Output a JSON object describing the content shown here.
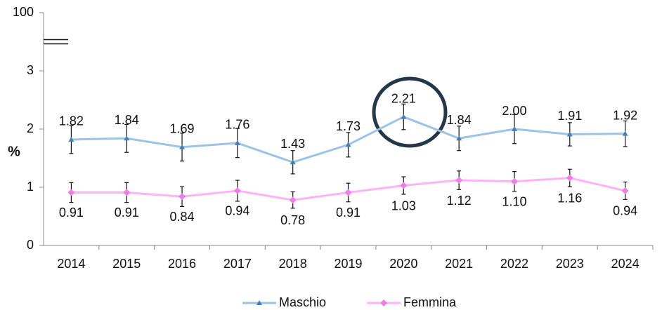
{
  "chart_data": {
    "type": "line",
    "y_label": "%",
    "categories": [
      "2014",
      "2015",
      "2016",
      "2017",
      "2018",
      "2019",
      "2020",
      "2021",
      "2022",
      "2023",
      "2024"
    ],
    "series": [
      {
        "name": "Maschio",
        "color": "#9dc3e6",
        "marker_color": "#4a7fb5",
        "marker": "triangle",
        "values": [
          1.82,
          1.84,
          1.69,
          1.76,
          1.43,
          1.73,
          2.21,
          1.84,
          2.0,
          1.91,
          1.92
        ],
        "value_labels": [
          "1.82",
          "1.84",
          "1.69",
          "1.76",
          "1.43",
          "1.73",
          "2.21",
          "1.84",
          "2.00",
          "1.91",
          "1.92"
        ],
        "errors": [
          0.24,
          0.24,
          0.24,
          0.25,
          0.2,
          0.21,
          0.22,
          0.21,
          0.25,
          0.2,
          0.22
        ]
      },
      {
        "name": "Femmina",
        "color": "#ffb3f3",
        "marker_color": "#f07ee8",
        "marker": "diamond",
        "values": [
          0.91,
          0.91,
          0.84,
          0.94,
          0.78,
          0.91,
          1.03,
          1.12,
          1.1,
          1.16,
          0.94
        ],
        "value_labels": [
          "0.91",
          "0.91",
          "0.84",
          "0.94",
          "0.78",
          "0.91",
          "1.03",
          "1.12",
          "1.10",
          "1.16",
          "0.94"
        ],
        "errors": [
          0.17,
          0.17,
          0.17,
          0.18,
          0.14,
          0.16,
          0.15,
          0.16,
          0.17,
          0.15,
          0.15
        ]
      }
    ],
    "ylim": [
      0,
      100
    ],
    "yticks": [
      0,
      1,
      2,
      3,
      100
    ],
    "y_break": true,
    "legend": "bottom"
  }
}
